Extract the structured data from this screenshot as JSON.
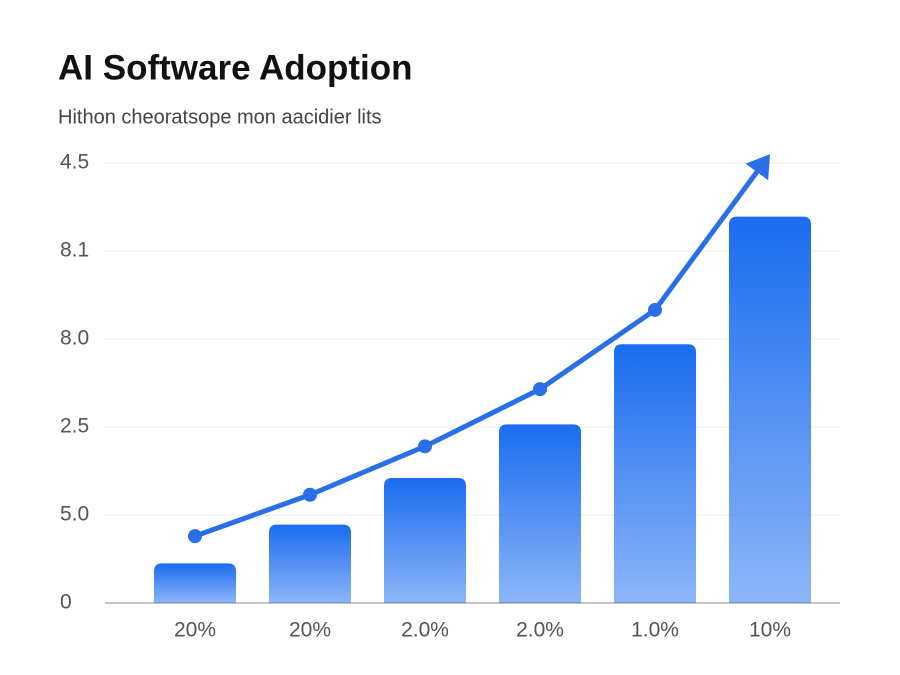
{
  "chart_data": {
    "type": "bar",
    "title": "AI Software Adoption",
    "subtitle": "Hithon cheoratsope mon aacidier lits",
    "categories": [
      "20%",
      "20%",
      "2.0%",
      "2.0%",
      "1.0%",
      "10%"
    ],
    "series": [
      {
        "type": "bar",
        "color": "#1a6cf0",
        "values": [
          0.45,
          0.89,
          1.42,
          2.03,
          2.94,
          4.39
        ]
      },
      {
        "type": "line",
        "color": "#2a6fe8",
        "values": [
          0.76,
          1.23,
          1.78,
          2.43,
          3.33,
          5.1
        ]
      }
    ],
    "ylim": [
      0,
      5.2
    ],
    "yticks": [
      0,
      {
        "value": 1,
        "label": "5.0"
      },
      {
        "value": 2,
        "label": "2.5"
      },
      {
        "value": 3,
        "label": "8.0"
      },
      {
        "value": 4,
        "label": "8.1"
      },
      {
        "value": 5,
        "label": "4.5"
      }
    ],
    "grid": true
  }
}
